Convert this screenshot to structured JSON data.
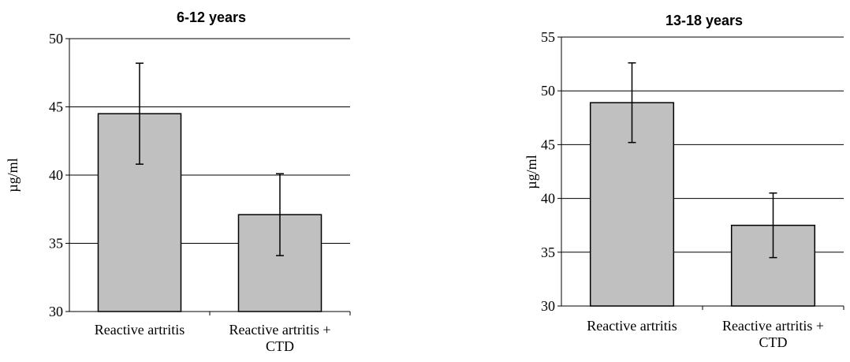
{
  "chart_data": [
    {
      "type": "bar",
      "title": "6-12 years",
      "ylabel": "µg/ml",
      "xlabel": "",
      "ylim": [
        30,
        50
      ],
      "yticks": [
        30,
        35,
        40,
        45,
        50
      ],
      "grid": true,
      "bar_color": "#c0c0c0",
      "categories": [
        [
          "Reactive artritis"
        ],
        [
          "Reactive artritis +",
          "CTD"
        ]
      ],
      "values": [
        44.5,
        37.1
      ],
      "errors": [
        [
          40.8,
          48.2
        ],
        [
          34.1,
          40.1
        ]
      ]
    },
    {
      "type": "bar",
      "title": "13-18 years",
      "ylabel": "µg/ml",
      "xlabel": "",
      "ylim": [
        30,
        55
      ],
      "yticks": [
        30,
        35,
        40,
        45,
        50,
        55
      ],
      "grid": true,
      "bar_color": "#c0c0c0",
      "categories": [
        [
          "Reactive artritis"
        ],
        [
          "Reactive artritis +",
          "CTD"
        ]
      ],
      "values": [
        48.9,
        37.5
      ],
      "errors": [
        [
          45.2,
          52.6
        ],
        [
          34.5,
          40.5
        ]
      ]
    }
  ]
}
